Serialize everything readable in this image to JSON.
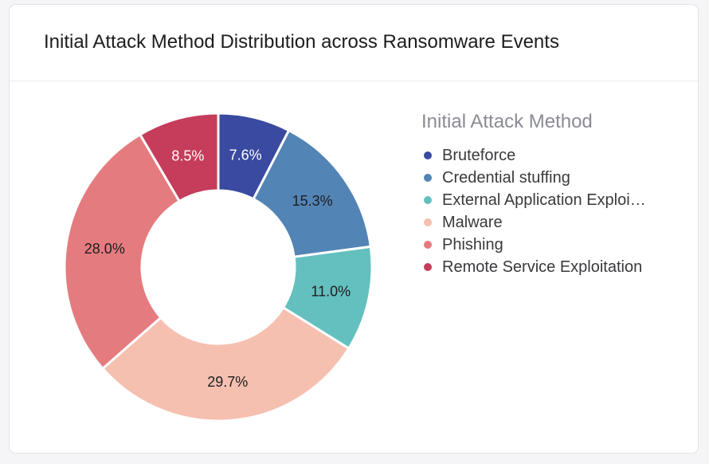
{
  "card": {
    "title": "Initial Attack Method Distribution across Ransomware Events"
  },
  "chart_data": {
    "type": "pie",
    "donut": true,
    "legend_title": "Initial Attack Method",
    "legend_position": "right",
    "categories": [
      "Bruteforce",
      "Credential stuffing",
      "External Application Exploitation",
      "Malware",
      "Phishing",
      "Remote Service Exploitation"
    ],
    "legend_labels": [
      "Bruteforce",
      "Credential stuffing",
      "External Application Exploi…",
      "Malware",
      "Phishing",
      "Remote Service Exploitation"
    ],
    "values": [
      7.6,
      15.3,
      11.0,
      29.7,
      28.0,
      8.5
    ],
    "labels": [
      "7.6%",
      "15.3%",
      "11.0%",
      "29.7%",
      "28.0%",
      "8.5%"
    ],
    "colors": [
      "#3a4aa0",
      "#5284b5",
      "#63c0bf",
      "#f5c0b0",
      "#e47b7f",
      "#c53d5b"
    ],
    "label_colors": [
      "#ffffff",
      "#1d1d1f",
      "#1d1d1f",
      "#1d1d1f",
      "#1d1d1f",
      "#ffffff"
    ]
  }
}
